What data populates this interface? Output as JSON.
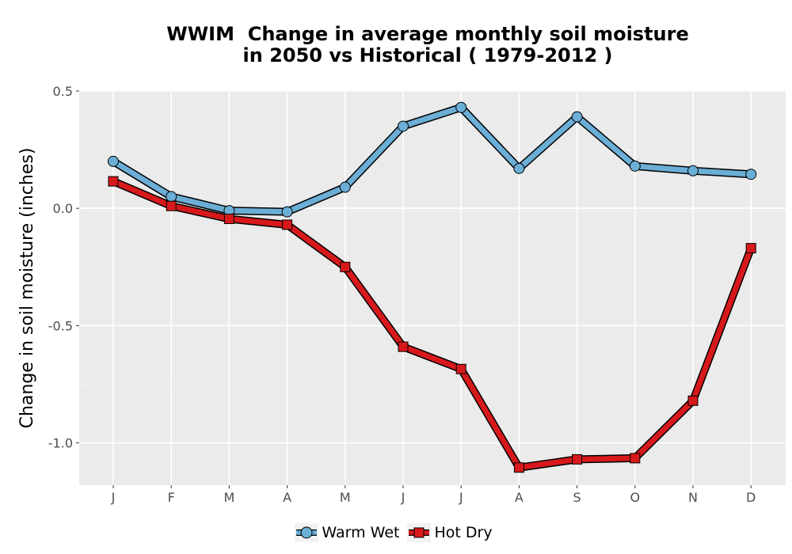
{
  "chart_data": {
    "type": "line",
    "title_lines": [
      "WWIM  Change in average monthly soil moisture",
      "in 2050 vs Historical ( 1979-2012 )"
    ],
    "xlabel": "",
    "ylabel": "Change in soil moisture (inches)",
    "categories": [
      "J",
      "F",
      "M",
      "A",
      "M",
      "J",
      "J",
      "A",
      "S",
      "O",
      "N",
      "D"
    ],
    "ylim": [
      -1.18,
      0.5
    ],
    "yticks": [
      0.5,
      0.0,
      -0.5,
      -1.0
    ],
    "ytick_labels": [
      "0.5",
      "0.0",
      "-0.5",
      "-1.0"
    ],
    "grid": true,
    "legend_position": "bottom",
    "series": [
      {
        "name": "Warm Wet",
        "marker": "circle",
        "color": "#6baed6",
        "values": [
          0.2,
          0.05,
          -0.01,
          -0.015,
          0.09,
          0.35,
          0.43,
          0.17,
          0.39,
          0.18,
          0.16,
          0.145
        ]
      },
      {
        "name": "Hot Dry",
        "marker": "square",
        "color": "#d7191c",
        "values": [
          0.115,
          0.01,
          -0.045,
          -0.07,
          -0.25,
          -0.59,
          -0.685,
          -1.105,
          -1.07,
          -1.065,
          -0.82,
          -0.17
        ]
      }
    ]
  }
}
